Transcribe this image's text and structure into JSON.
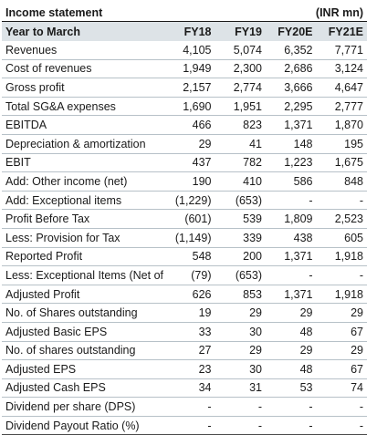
{
  "title": "Income statement",
  "unit": "(INR mn)",
  "header": [
    "Year to March",
    "FY18",
    "FY19",
    "FY20E",
    "FY21E"
  ],
  "rows": [
    [
      "Revenues",
      "4,105",
      "5,074",
      "6,352",
      "7,771"
    ],
    [
      "Cost of revenues",
      "1,949",
      "2,300",
      "2,686",
      "3,124"
    ],
    [
      "Gross profit",
      "2,157",
      "2,774",
      "3,666",
      "4,647"
    ],
    [
      "Total SG&A expenses",
      "1,690",
      "1,951",
      "2,295",
      "2,777"
    ],
    [
      "EBITDA",
      "466",
      "823",
      "1,371",
      "1,870"
    ],
    [
      "Depreciation & amortization",
      "29",
      "41",
      "148",
      "195"
    ],
    [
      "EBIT",
      "437",
      "782",
      "1,223",
      "1,675"
    ],
    [
      "Add: Other income (net)",
      "190",
      "410",
      "586",
      "848"
    ],
    [
      "Add: Exceptional items",
      "(1,229)",
      "(653)",
      "-",
      "-"
    ],
    [
      "Profit Before Tax",
      "(601)",
      "539",
      "1,809",
      "2,523"
    ],
    [
      "Less: Provision for Tax",
      "(1,149)",
      "339",
      "438",
      "605"
    ],
    [
      "Reported Profit",
      "548",
      "200",
      "1,371",
      "1,918"
    ],
    [
      "Less: Exceptional Items (Net of T",
      "(79)",
      "(653)",
      "-",
      "-"
    ],
    [
      "Adjusted Profit",
      "626",
      "853",
      "1,371",
      "1,918"
    ],
    [
      "No. of Shares outstanding",
      "19",
      "29",
      "29",
      "29"
    ],
    [
      "Adjusted Basic EPS",
      "33",
      "30",
      "48",
      "67"
    ],
    [
      "No. of shares outstanding",
      "27",
      "29",
      "29",
      "29"
    ],
    [
      "Adjusted EPS",
      "23",
      "30",
      "48",
      "67"
    ],
    [
      "Adjusted Cash EPS",
      "34",
      "31",
      "53",
      "74"
    ],
    [
      "Dividend per share (DPS)",
      "-",
      "-",
      "-",
      "-"
    ],
    [
      "Dividend Payout Ratio (%)",
      "-",
      "-",
      "-",
      "-"
    ]
  ]
}
